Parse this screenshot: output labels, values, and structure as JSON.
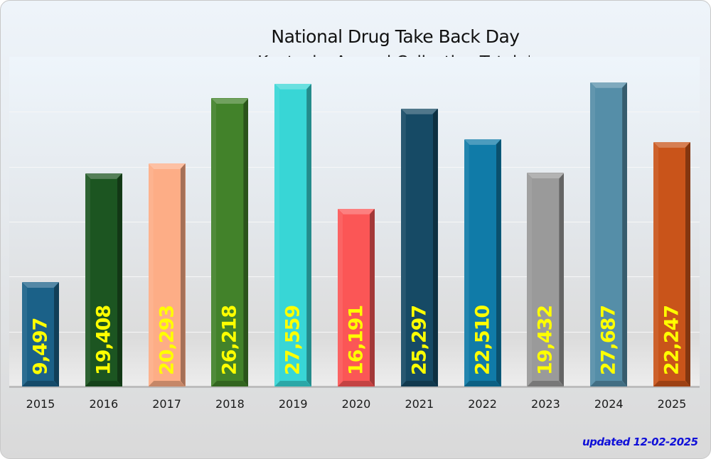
{
  "chart_data": {
    "type": "bar",
    "title": "National Drug  Take Back Day",
    "subtitle": "Kentucky Annual Collection Totals*",
    "xlabel": "",
    "ylabel": "",
    "ylim": [
      0,
      30000
    ],
    "grid": true,
    "grid_step": 5000,
    "legend": null,
    "categories": [
      "2015",
      "2016",
      "2017",
      "2018",
      "2019",
      "2020",
      "2021",
      "2022",
      "2023",
      "2024",
      "2025"
    ],
    "values": [
      9497,
      19408,
      20293,
      26218,
      27559,
      16191,
      25297,
      22510,
      19432,
      27687,
      22247
    ],
    "value_labels": [
      "9,497",
      "19,408",
      "20,293",
      "26,218",
      "27,559",
      "16,191",
      "25,297",
      "22,510",
      "19,432",
      "27,687",
      "22,247"
    ],
    "bar_colors": [
      "#1b6188",
      "#1c5521",
      "#fdad86",
      "#42822a",
      "#38d6d6",
      "#fb5656",
      "#164a65",
      "#107ba8",
      "#9a9a9a",
      "#558ea8",
      "#c9541a"
    ],
    "label_color": "#ffff00",
    "annotation": "updated 12-02-2025",
    "annotation_color": "#1010d8"
  },
  "header": {
    "title": "National Drug  Take Back Day",
    "subtitle": "Kentucky Annual Collection Totals*"
  },
  "footer": {
    "updated": "updated 12-02-2025"
  }
}
